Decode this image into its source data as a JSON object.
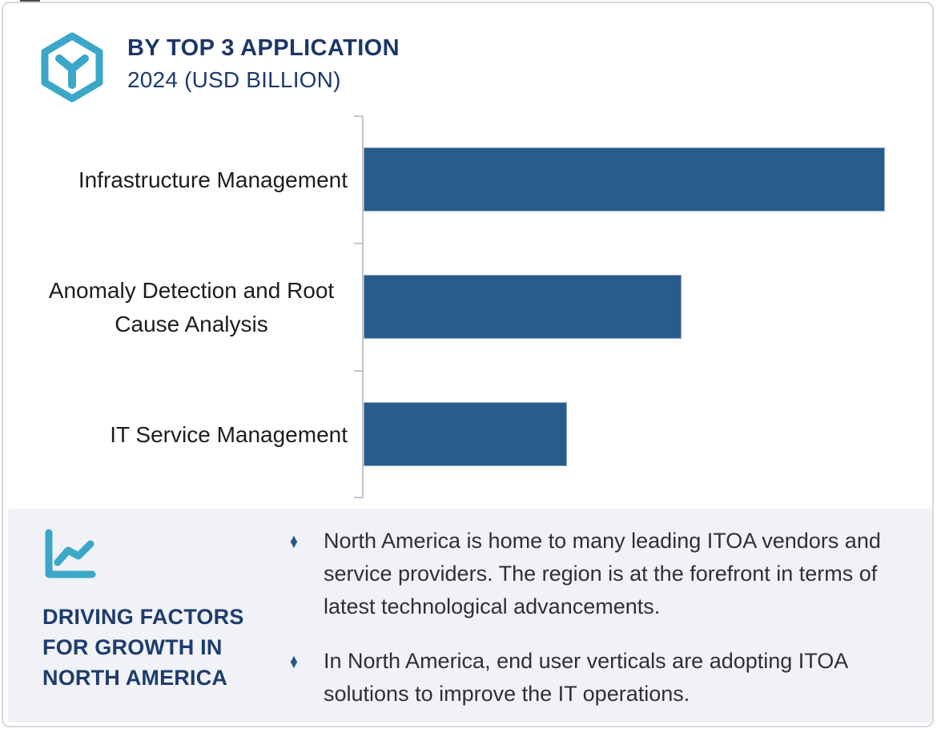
{
  "header": {
    "title": "BY TOP 3 APPLICATION",
    "subtitle": "2024 (USD BILLION)"
  },
  "chart_data": {
    "type": "bar",
    "orientation": "horizontal",
    "title": "BY TOP 3 APPLICATION",
    "subtitle": "2024 (USD BILLION)",
    "unit": "USD Billion",
    "categories": [
      "Infrastructure Management",
      "Anomaly Detection and Root Cause Analysis",
      "IT Service Management"
    ],
    "values": [
      1.0,
      0.61,
      0.39
    ],
    "values_note": "relative bar lengths; no numeric data labels are shown in the chart",
    "xlim": [
      0,
      1.02
    ],
    "grid": false,
    "legend": false,
    "value_axis_labels": false,
    "bar_color": "#2a5c8b",
    "axis_color": "#c5c5c5"
  },
  "driving_factors": {
    "heading": "DRIVING FACTORS FOR GROWTH IN NORTH AMERICA",
    "bullet_glyph": "♦",
    "bullets": [
      "North America is home to many leading ITOA vendors and service providers. The region is at the forefront in terms of latest technological advancements.",
      "In North America, end user verticals are adopting ITOA solutions to improve the IT operations."
    ]
  },
  "colors": {
    "navy_title": "#1c3768",
    "teal_icon": "#3ba7c9",
    "bar_fill": "#2a5c8b",
    "panel_background": "#f0f2f7",
    "body_text": "#303030",
    "card_border": "#d7d9df"
  }
}
